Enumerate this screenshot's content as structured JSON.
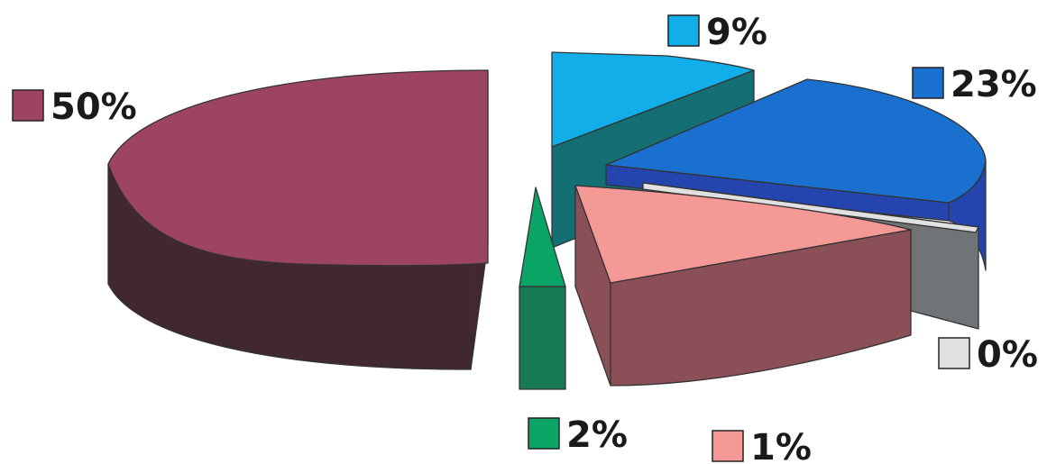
{
  "chart_data": {
    "type": "pie",
    "three_d": true,
    "exploded": true,
    "title": "",
    "legend_position": "none",
    "slices": [
      {
        "label": "50%",
        "value": 50,
        "color": "#9e4463",
        "side_color": "#41272e"
      },
      {
        "label": "9%",
        "value": 9,
        "color": "#12aee9",
        "side_color": "#146f72"
      },
      {
        "label": "23%",
        "value": 23,
        "color": "#1a70cf",
        "side_color": "#2445ad"
      },
      {
        "label": "0%",
        "value": 0,
        "color": "#e0e1e0",
        "side_color": "#707476"
      },
      {
        "label": "1%",
        "value": 1,
        "color": "#f59996",
        "side_color": "#8a4f57"
      },
      {
        "label": "2%",
        "value": 2,
        "color": "#0ba467",
        "side_color": "#167a55"
      }
    ]
  }
}
